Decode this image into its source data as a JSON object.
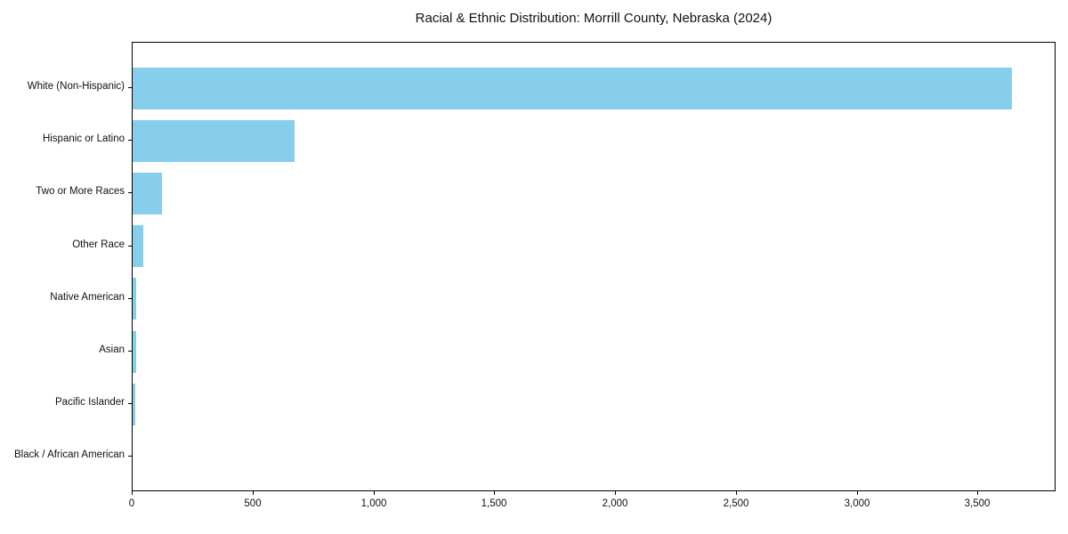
{
  "chart_data": {
    "type": "bar",
    "orientation": "horizontal",
    "title": "Racial & Ethnic Distribution: Morrill County, Nebraska (2024)",
    "categories": [
      "White (Non-Hispanic)",
      "Hispanic or Latino",
      "Two or More Races",
      "Other Race",
      "Native American",
      "Asian",
      "Pacific Islander",
      "Black / African American"
    ],
    "values": [
      3640,
      670,
      120,
      45,
      16,
      13,
      12,
      0
    ],
    "xlabel": "",
    "ylabel": "",
    "xlim": [
      0,
      3823
    ],
    "x_ticks": [
      0,
      500,
      1000,
      1500,
      2000,
      2500,
      3000,
      3500
    ],
    "x_tick_labels": [
      "0",
      "500",
      "1,000",
      "1,500",
      "2,000",
      "2,500",
      "3,000",
      "3,500"
    ],
    "grid": false,
    "legend": null,
    "bar_color": "#87CEEB",
    "axis_color": "#000000"
  }
}
